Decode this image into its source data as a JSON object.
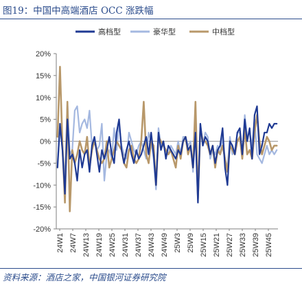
{
  "page_title": "图19：中国中高端酒店 OCC 涨跌幅",
  "source_note": "资料来源：酒店之家，中国银河证券研究院",
  "colors": {
    "title": "#2b4c8c",
    "axis": "#7f7f7f",
    "zero_line": "#999999"
  },
  "chart_data": {
    "type": "line",
    "title": "",
    "xlabel": "",
    "ylabel": "",
    "ylim": [
      -20,
      20
    ],
    "yticks": [
      20,
      15,
      10,
      5,
      0,
      -5,
      -10,
      -15,
      -20
    ],
    "y_tick_format": "percent",
    "xtick_labels": [
      "24W1",
      "24W7",
      "24W13",
      "24W19",
      "24W25",
      "24W31",
      "24W37",
      "24W43",
      "24W49",
      "25W3",
      "25W9",
      "25W15",
      "25W21",
      "25W27",
      "25W33",
      "25W39",
      "25W45"
    ],
    "grid": false,
    "legend_position": "top",
    "series": [
      {
        "name": "高档型",
        "color": "#1f3a93",
        "values": [
          -6,
          4,
          -2,
          -12,
          5,
          -4,
          -3,
          -5,
          -9,
          -2,
          -6,
          -3,
          -2,
          -7,
          -1,
          1,
          -3,
          -7,
          -2,
          -4,
          -2,
          1,
          -3,
          -5,
          2,
          5,
          -2,
          -5,
          -2,
          0,
          -3,
          -5,
          -2,
          -4,
          -3,
          -1,
          1,
          -3,
          2,
          -3,
          -10,
          2,
          -2,
          0,
          -4,
          -1,
          -2,
          -3,
          -4,
          -2,
          -3,
          0,
          1,
          -2,
          -1,
          -6,
          2,
          -14,
          4,
          -1,
          1,
          0,
          -3,
          -1,
          -5,
          -2,
          -1,
          3,
          -6,
          -10,
          0,
          -1,
          -3,
          2,
          3,
          -3,
          5,
          0,
          3,
          -4,
          6,
          8,
          -3,
          -1,
          2,
          2,
          4,
          3,
          4,
          4
        ]
      },
      {
        "name": "豪华型",
        "color": "#a4b8e0",
        "values": [
          -5,
          3,
          -1,
          -9,
          9,
          -3,
          -2,
          7,
          8,
          2,
          4,
          5,
          3,
          7,
          -1,
          1,
          -2,
          -1,
          4,
          -9,
          -3,
          -2,
          -4,
          3,
          -2,
          4,
          -1,
          -3,
          -4,
          2,
          0,
          -2,
          -3,
          -1,
          0,
          -2,
          -4,
          2,
          0,
          -4,
          -11,
          3,
          -1,
          0,
          -3,
          -3,
          -1,
          -2,
          -3,
          0,
          -3,
          1,
          1,
          -1,
          0,
          -7,
          2,
          -14,
          4,
          -1,
          2,
          1,
          -4,
          -2,
          -3,
          -1,
          -3,
          1,
          -4,
          -6,
          1,
          -3,
          -2,
          2,
          2,
          -3,
          6,
          1,
          2,
          -1,
          5,
          -3,
          -4,
          -5,
          -3,
          -1,
          -3,
          -2,
          -3,
          -2
        ]
      },
      {
        "name": "中档型",
        "color": "#b8986a",
        "values": [
          1,
          17,
          -1,
          -14,
          9,
          -16,
          -2,
          -5,
          -3,
          0,
          -2,
          -3,
          1,
          -6,
          -2,
          0,
          -2,
          -4,
          -5,
          -4,
          0,
          -6,
          -4,
          -2,
          0,
          -1,
          -2,
          -5,
          -6,
          -2,
          -1,
          -4,
          -5,
          -4,
          0,
          9,
          -3,
          -5,
          0,
          -1,
          -10,
          1,
          0,
          -1,
          -2,
          -3,
          -2,
          -4,
          -6,
          -1,
          -4,
          0,
          1,
          -3,
          -1,
          -6,
          9,
          -13,
          3,
          0,
          0,
          -1,
          -3,
          -1,
          -6,
          -2,
          -3,
          -1,
          -4,
          -7,
          -1,
          -2,
          -3,
          0,
          1,
          -4,
          3,
          -3,
          -2,
          -4,
          2,
          6,
          0,
          -3,
          -1,
          1,
          0,
          -2,
          -1,
          -1
        ]
      }
    ]
  }
}
